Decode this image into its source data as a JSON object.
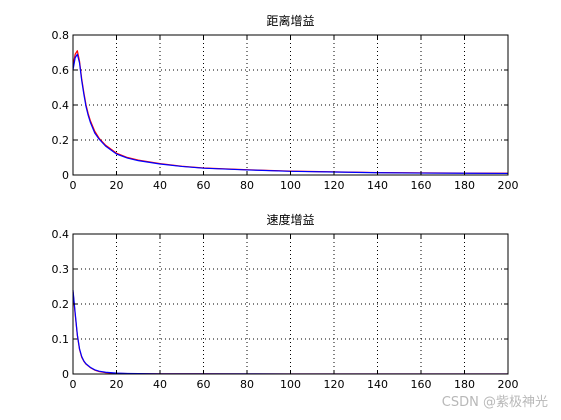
{
  "chart_data": [
    {
      "type": "line",
      "title": "距离增益",
      "xlabel": "",
      "ylabel": "",
      "xlim": [
        0,
        200
      ],
      "ylim": [
        0,
        0.8
      ],
      "xticks": [
        0,
        20,
        40,
        60,
        80,
        100,
        120,
        140,
        160,
        180,
        200
      ],
      "yticks": [
        0,
        0.2,
        0.4,
        0.6,
        0.8
      ],
      "grid": true,
      "legend": "none",
      "series": [
        {
          "color": "#ff0000",
          "x": [
            0,
            1,
            2,
            3,
            4,
            5,
            6,
            7,
            8,
            10,
            12,
            15,
            20,
            25,
            30,
            40,
            50,
            60,
            80,
            100,
            120,
            140,
            160,
            180,
            200
          ],
          "y": [
            0.62,
            0.69,
            0.71,
            0.65,
            0.55,
            0.47,
            0.4,
            0.35,
            0.31,
            0.25,
            0.21,
            0.17,
            0.125,
            0.1,
            0.085,
            0.065,
            0.05,
            0.04,
            0.03,
            0.022,
            0.018,
            0.014,
            0.012,
            0.011,
            0.01
          ]
        },
        {
          "color": "#0000ff",
          "x": [
            0,
            1,
            2,
            3,
            4,
            5,
            6,
            7,
            8,
            10,
            12,
            15,
            20,
            25,
            30,
            40,
            50,
            60,
            80,
            100,
            120,
            140,
            160,
            180,
            200
          ],
          "y": [
            0.6,
            0.67,
            0.69,
            0.64,
            0.54,
            0.46,
            0.39,
            0.34,
            0.3,
            0.24,
            0.205,
            0.165,
            0.12,
            0.097,
            0.082,
            0.063,
            0.049,
            0.039,
            0.029,
            0.021,
            0.017,
            0.013,
            0.011,
            0.01,
            0.009
          ]
        }
      ]
    },
    {
      "type": "line",
      "title": "速度增益",
      "xlabel": "",
      "ylabel": "",
      "xlim": [
        0,
        200
      ],
      "ylim": [
        0,
        0.4
      ],
      "xticks": [
        0,
        20,
        40,
        60,
        80,
        100,
        120,
        140,
        160,
        180,
        200
      ],
      "yticks": [
        0,
        0.1,
        0.2,
        0.3,
        0.4
      ],
      "grid": true,
      "legend": "none",
      "series": [
        {
          "color": "#ff0000",
          "x": [
            0,
            1,
            2,
            3,
            4,
            5,
            6,
            8,
            10,
            12,
            15,
            20,
            25,
            30,
            40,
            60,
            80,
            100,
            120,
            140,
            160,
            180,
            200
          ],
          "y": [
            0.235,
            0.17,
            0.11,
            0.07,
            0.048,
            0.036,
            0.028,
            0.018,
            0.011,
            0.007,
            0.004,
            0.002,
            0.001,
            0.0008,
            0.0005,
            0.0003,
            0.0002,
            0.0002,
            0.0001,
            0.0001,
            0.0001,
            0.0001,
            0.0001
          ]
        },
        {
          "color": "#0000ff",
          "x": [
            0,
            1,
            2,
            3,
            4,
            5,
            6,
            8,
            10,
            12,
            15,
            20,
            25,
            30,
            40,
            60,
            80,
            100,
            120,
            140,
            160,
            180,
            200
          ],
          "y": [
            0.24,
            0.175,
            0.112,
            0.072,
            0.05,
            0.037,
            0.029,
            0.019,
            0.012,
            0.008,
            0.005,
            0.0025,
            0.0015,
            0.001,
            0.0006,
            0.0004,
            0.0003,
            0.0002,
            0.0002,
            0.0001,
            0.0001,
            0.0001,
            0.0001
          ]
        }
      ]
    }
  ],
  "watermark": "CSDN @紫极神光"
}
